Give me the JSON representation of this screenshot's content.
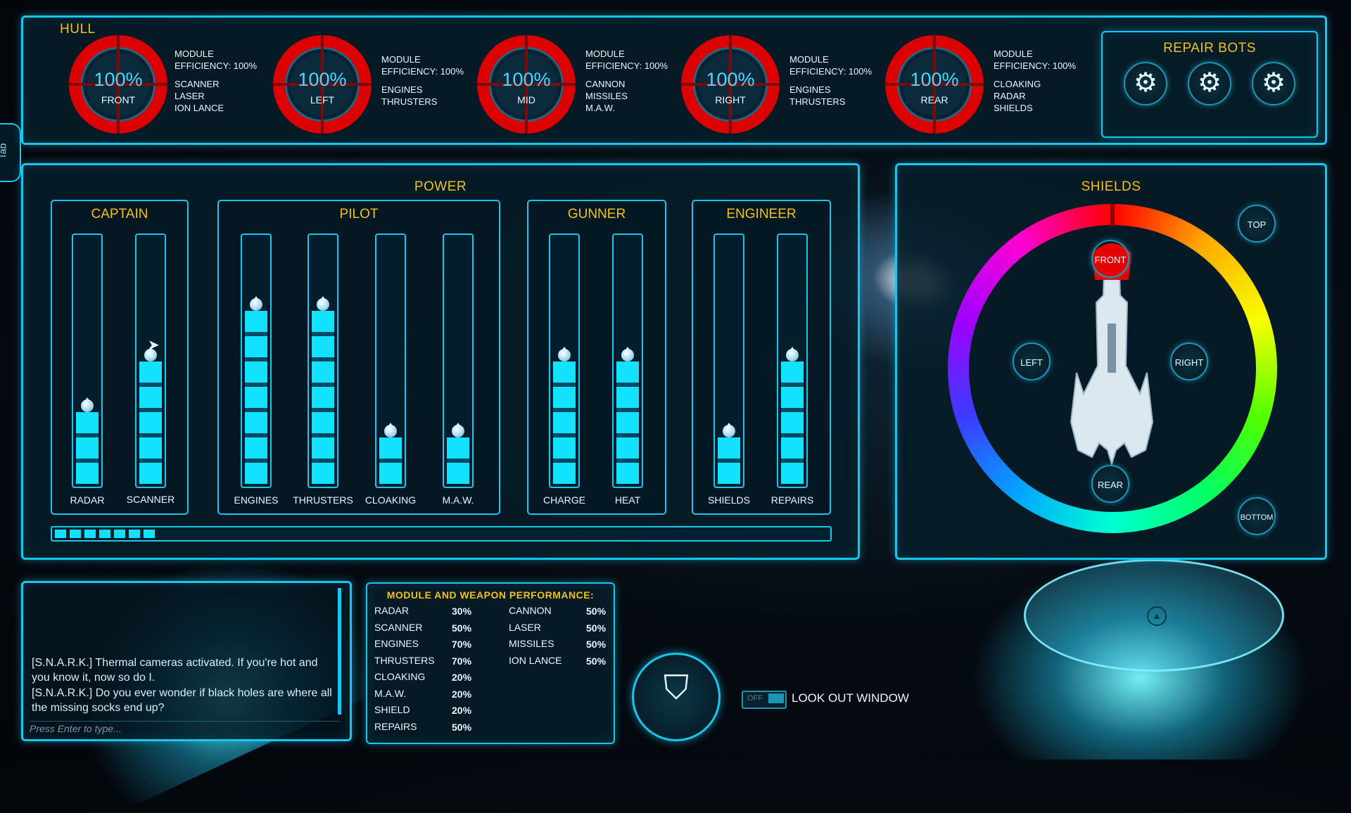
{
  "side_tab": "Tab",
  "hull": {
    "title": "HULL",
    "modules": [
      {
        "pct": "100%",
        "label": "FRONT",
        "efficiency_label": "MODULE",
        "efficiency_value": "EFFICIENCY: 100%",
        "systems": [
          "SCANNER",
          "LASER",
          "ION LANCE"
        ]
      },
      {
        "pct": "100%",
        "label": "LEFT",
        "efficiency_label": "MODULE",
        "efficiency_value": "EFFICIENCY: 100%",
        "systems": [
          "ENGINES",
          "THRUSTERS"
        ]
      },
      {
        "pct": "100%",
        "label": "MID",
        "efficiency_label": "MODULE",
        "efficiency_value": "EFFICIENCY: 100%",
        "systems": [
          "CANNON",
          "MISSILES",
          "M.A.W."
        ]
      },
      {
        "pct": "100%",
        "label": "RIGHT",
        "efficiency_label": "MODULE",
        "efficiency_value": "EFFICIENCY: 100%",
        "systems": [
          "ENGINES",
          "THRUSTERS"
        ]
      },
      {
        "pct": "100%",
        "label": "REAR",
        "efficiency_label": "MODULE",
        "efficiency_value": "EFFICIENCY: 100%",
        "systems": [
          "CLOAKING",
          "RADAR",
          "SHIELDS"
        ]
      }
    ]
  },
  "repair_bots": {
    "title": "REPAIR BOTS",
    "count": 3
  },
  "power": {
    "title": "POWER",
    "groups": {
      "captain": {
        "title": "CAPTAIN",
        "sliders": [
          {
            "label": "RADAR",
            "level": 3
          },
          {
            "label": "SCANNER",
            "level": 5
          }
        ]
      },
      "pilot": {
        "title": "PILOT",
        "sliders": [
          {
            "label": "ENGINES",
            "level": 7
          },
          {
            "label": "THRUSTERS",
            "level": 7
          },
          {
            "label": "CLOAKING",
            "level": 2
          },
          {
            "label": "M.A.W.",
            "level": 2
          }
        ]
      },
      "gunner": {
        "title": "GUNNER",
        "sliders": [
          {
            "label": "CHARGE",
            "level": 5
          },
          {
            "label": "HEAT",
            "level": 5
          }
        ]
      },
      "engineer": {
        "title": "ENGINEER",
        "sliders": [
          {
            "label": "SHIELDS",
            "level": 2
          },
          {
            "label": "REPAIRS",
            "level": 5
          }
        ]
      }
    },
    "max_level": 10,
    "reserve_segments": 7
  },
  "shields": {
    "title": "SHIELDS",
    "buttons": {
      "top": "TOP",
      "bottom": "BOTTOM",
      "front": "FRONT",
      "left": "LEFT",
      "right": "RIGHT",
      "rear": "REAR"
    },
    "wheel_colors": [
      "#ff0000",
      "#ffaa00",
      "#f7ff00",
      "#52ff00",
      "#00ffd0",
      "#00a8ff",
      "#a000ff",
      "#ff00d4"
    ],
    "front_highlight_color": "#e60000"
  },
  "chat": {
    "lines": [
      "[S.N.A.R.K.] Thermal cameras activated. If you're hot and you know it, now so do I.",
      "[S.N.A.R.K.] Do you ever wonder if black holes are where all the missing socks end up?"
    ],
    "placeholder": "Press Enter to type..."
  },
  "performance": {
    "title": "MODULE AND WEAPON PERFORMANCE:",
    "left": [
      {
        "name": "RADAR",
        "value": "30%"
      },
      {
        "name": "SCANNER",
        "value": "50%"
      },
      {
        "name": "ENGINES",
        "value": "70%"
      },
      {
        "name": "THRUSTERS",
        "value": "70%"
      },
      {
        "name": "CLOAKING",
        "value": "20%"
      },
      {
        "name": "M.A.W.",
        "value": "20%"
      },
      {
        "name": "SHIELD",
        "value": "20%"
      },
      {
        "name": "REPAIRS",
        "value": "50%"
      }
    ],
    "right": [
      {
        "name": "CANNON",
        "value": "50%"
      },
      {
        "name": "LASER",
        "value": "50%"
      },
      {
        "name": "MISSILES",
        "value": "50%"
      },
      {
        "name": "ION LANCE",
        "value": "50%"
      }
    ]
  },
  "look_out_window": {
    "toggle_state": "OFF",
    "label": "LOOK OUT WINDOW"
  },
  "colors": {
    "accent": "#19c6ee",
    "title": "#f2c218",
    "hull_ring": "#d00000",
    "bar_fill": "#13e2ff"
  }
}
